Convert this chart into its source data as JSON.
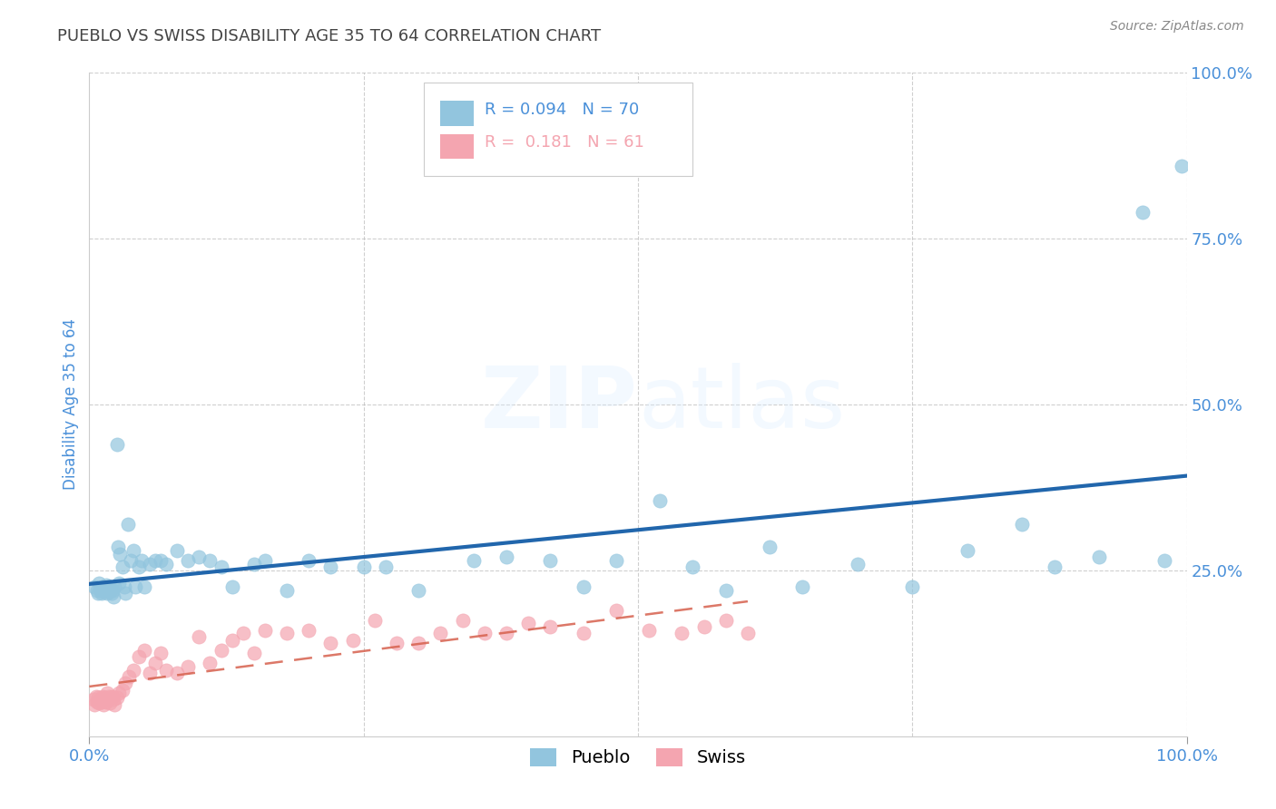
{
  "title": "PUEBLO VS SWISS DISABILITY AGE 35 TO 64 CORRELATION CHART",
  "source": "Source: ZipAtlas.com",
  "ylabel": "Disability Age 35 to 64",
  "xlim": [
    0.0,
    1.0
  ],
  "ylim": [
    0.0,
    1.0
  ],
  "pueblo_color": "#92c5de",
  "swiss_color": "#f4a5b0",
  "pueblo_line_color": "#2166ac",
  "swiss_line_color": "#d6604d",
  "pueblo_R": 0.094,
  "pueblo_N": 70,
  "swiss_R": 0.181,
  "swiss_N": 61,
  "background_color": "#ffffff",
  "grid_color": "#bbbbbb",
  "title_color": "#444444",
  "axis_color": "#4a90d9",
  "watermark": "ZIPatlas",
  "pueblo_x": [
    0.005,
    0.007,
    0.008,
    0.009,
    0.01,
    0.011,
    0.012,
    0.013,
    0.014,
    0.015,
    0.016,
    0.017,
    0.018,
    0.019,
    0.02,
    0.02,
    0.021,
    0.022,
    0.023,
    0.025,
    0.026,
    0.027,
    0.028,
    0.03,
    0.032,
    0.033,
    0.035,
    0.038,
    0.04,
    0.042,
    0.045,
    0.048,
    0.05,
    0.055,
    0.06,
    0.065,
    0.07,
    0.08,
    0.09,
    0.1,
    0.11,
    0.12,
    0.13,
    0.15,
    0.16,
    0.18,
    0.2,
    0.22,
    0.25,
    0.27,
    0.3,
    0.35,
    0.38,
    0.42,
    0.45,
    0.48,
    0.52,
    0.55,
    0.58,
    0.62,
    0.65,
    0.7,
    0.75,
    0.8,
    0.85,
    0.88,
    0.92,
    0.96,
    0.98,
    0.995
  ],
  "pueblo_y": [
    0.225,
    0.22,
    0.215,
    0.23,
    0.22,
    0.215,
    0.225,
    0.218,
    0.222,
    0.228,
    0.215,
    0.22,
    0.225,
    0.218,
    0.222,
    0.215,
    0.22,
    0.21,
    0.225,
    0.44,
    0.285,
    0.23,
    0.275,
    0.255,
    0.225,
    0.215,
    0.32,
    0.265,
    0.28,
    0.225,
    0.255,
    0.265,
    0.225,
    0.26,
    0.265,
    0.265,
    0.26,
    0.28,
    0.265,
    0.27,
    0.265,
    0.255,
    0.225,
    0.26,
    0.265,
    0.22,
    0.265,
    0.255,
    0.255,
    0.255,
    0.22,
    0.265,
    0.27,
    0.265,
    0.225,
    0.265,
    0.355,
    0.255,
    0.22,
    0.285,
    0.225,
    0.26,
    0.225,
    0.28,
    0.32,
    0.255,
    0.27,
    0.79,
    0.265,
    0.86
  ],
  "swiss_x": [
    0.004,
    0.005,
    0.006,
    0.007,
    0.008,
    0.009,
    0.01,
    0.011,
    0.012,
    0.013,
    0.014,
    0.015,
    0.016,
    0.017,
    0.018,
    0.019,
    0.02,
    0.021,
    0.022,
    0.023,
    0.025,
    0.027,
    0.03,
    0.033,
    0.036,
    0.04,
    0.045,
    0.05,
    0.055,
    0.06,
    0.065,
    0.07,
    0.08,
    0.09,
    0.1,
    0.11,
    0.12,
    0.13,
    0.14,
    0.15,
    0.16,
    0.18,
    0.2,
    0.22,
    0.24,
    0.26,
    0.28,
    0.3,
    0.32,
    0.34,
    0.36,
    0.38,
    0.4,
    0.42,
    0.45,
    0.48,
    0.51,
    0.54,
    0.56,
    0.58,
    0.6
  ],
  "swiss_y": [
    0.055,
    0.048,
    0.06,
    0.052,
    0.058,
    0.05,
    0.055,
    0.052,
    0.06,
    0.048,
    0.058,
    0.052,
    0.065,
    0.055,
    0.06,
    0.05,
    0.058,
    0.06,
    0.055,
    0.048,
    0.058,
    0.065,
    0.07,
    0.08,
    0.09,
    0.1,
    0.12,
    0.13,
    0.095,
    0.11,
    0.125,
    0.1,
    0.095,
    0.105,
    0.15,
    0.11,
    0.13,
    0.145,
    0.155,
    0.125,
    0.16,
    0.155,
    0.16,
    0.14,
    0.145,
    0.175,
    0.14,
    0.14,
    0.155,
    0.175,
    0.155,
    0.155,
    0.17,
    0.165,
    0.155,
    0.19,
    0.16,
    0.155,
    0.165,
    0.175,
    0.155
  ]
}
